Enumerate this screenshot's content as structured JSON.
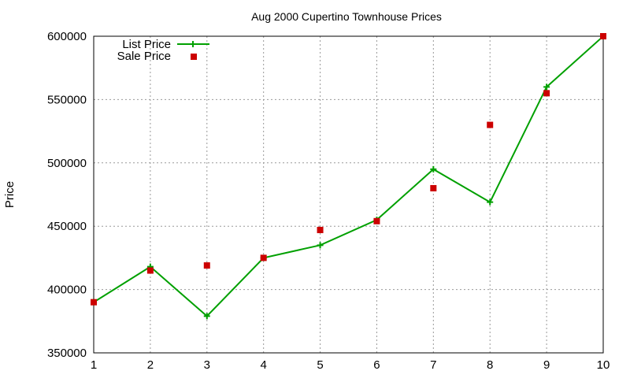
{
  "chart_data": {
    "type": "line",
    "title": "Aug 2000 Cupertino Townhouse Prices",
    "xlabel": "",
    "ylabel": "Price",
    "xlim": [
      1,
      10
    ],
    "ylim": [
      350000,
      600000
    ],
    "x_ticks": [
      1,
      2,
      3,
      4,
      5,
      6,
      7,
      8,
      9,
      10
    ],
    "y_ticks": [
      350000,
      400000,
      450000,
      500000,
      550000,
      600000
    ],
    "grid": true,
    "legend_position": "top-left",
    "x": [
      1,
      2,
      3,
      4,
      5,
      6,
      7,
      8,
      9,
      10
    ],
    "series": [
      {
        "name": "List Price",
        "style": "linespoints",
        "marker": "plus",
        "color": "#00a000",
        "values": [
          390000,
          418000,
          379000,
          425000,
          435000,
          455000,
          495000,
          469000,
          560000,
          600000
        ]
      },
      {
        "name": "Sale Price",
        "style": "points",
        "marker": "square",
        "color": "#cc0000",
        "values": [
          390000,
          415000,
          419000,
          425000,
          447000,
          454000,
          480000,
          530000,
          555000,
          600000
        ]
      }
    ]
  }
}
